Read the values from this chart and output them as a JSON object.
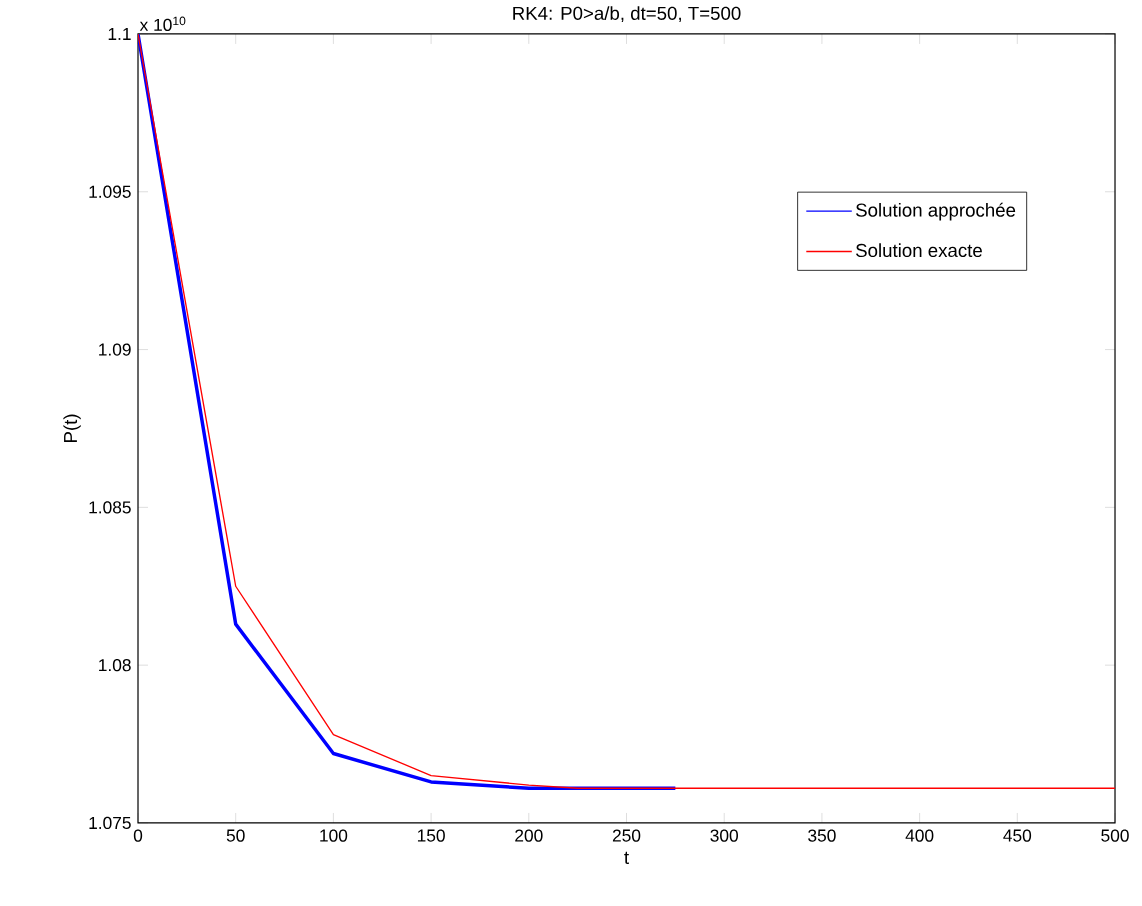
{
  "chart_data": {
    "type": "line",
    "title": "RK4: P0>a/b, dt=50, T=500",
    "xlabel": "t",
    "ylabel": "P(t)",
    "annotations": [
      "x 10$^{10}$"
    ],
    "series": [
      {
        "name": "Solution approchée",
        "color": "#0000ff",
        "x": [
          0,
          50,
          100,
          150,
          200,
          225,
          275
        ],
        "values": [
          1.1,
          1.0813,
          1.0772,
          1.0763,
          1.0761,
          1.0761,
          1.0761
        ]
      },
      {
        "name": "Solution exacte",
        "color": "#ff0000",
        "x": [
          0,
          50,
          100,
          150,
          200,
          225,
          500
        ],
        "values": [
          1.1,
          1.0825,
          1.0778,
          1.0765,
          1.0762,
          1.0761,
          1.0761
        ]
      }
    ],
    "xlim": [
      0,
      500
    ],
    "ylim": [
      1.075,
      1.1
    ],
    "xticks": [
      0,
      50,
      100,
      150,
      200,
      250,
      300,
      350,
      400,
      450,
      500
    ],
    "yticks": [
      1.075,
      1.08,
      1.085,
      1.09,
      1.095,
      1.1
    ],
    "legend": "top right"
  }
}
